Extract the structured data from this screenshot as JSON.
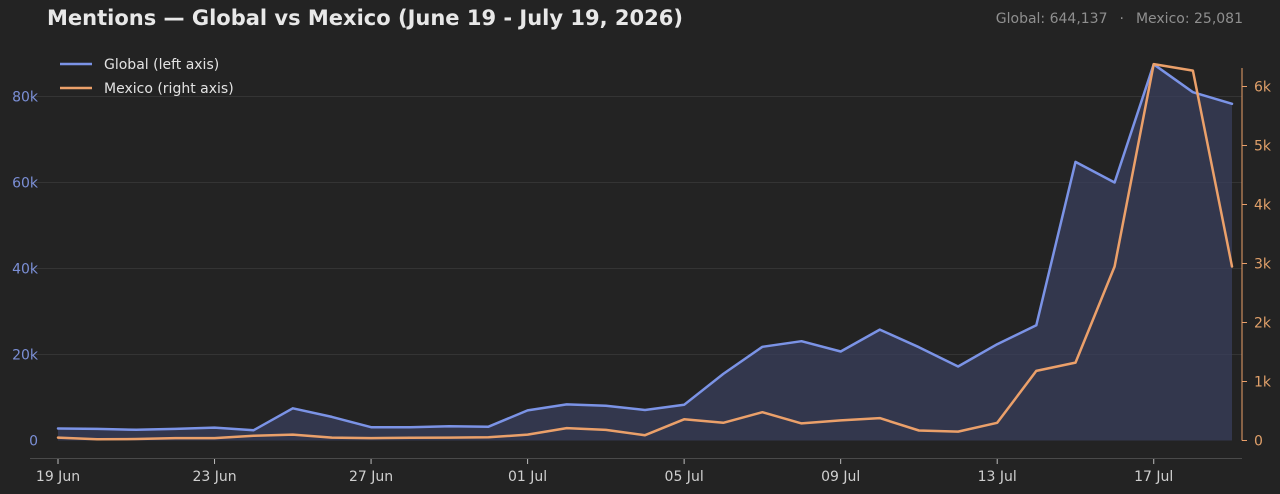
{
  "title": "Mentions — Global vs Mexico (June 19 - July 19, 2026)",
  "totals": {
    "global": "Global: 644,137",
    "separator": "·",
    "mexico": "Mexico: 25,081"
  },
  "colors": {
    "background": "#232323",
    "global": "#7b93e6",
    "mexico": "#eba06a",
    "grid": "#343434",
    "area_fill": "#3a3f5c"
  },
  "chart_data": {
    "type": "line",
    "x_axis": {
      "range": [
        "2026-06-19",
        "2026-07-19"
      ],
      "ticks": [
        "19 Jun",
        "23 Jun",
        "27 Jun",
        "01 Jul",
        "05 Jul",
        "09 Jul",
        "13 Jul",
        "17 Jul"
      ]
    },
    "y_left": {
      "range": [
        0,
        90000
      ],
      "ticks": [
        "0",
        "20k",
        "40k",
        "60k",
        "80k"
      ],
      "tick_values": [
        0,
        20000,
        40000,
        60000,
        80000
      ]
    },
    "y_right": {
      "range": [
        0,
        6500
      ],
      "ticks": [
        "0",
        "1k",
        "2k",
        "3k",
        "4k",
        "5k",
        "6k"
      ],
      "tick_values": [
        0,
        1000,
        2000,
        3000,
        4000,
        5000,
        6000
      ]
    },
    "legend_position": "top-left",
    "grid": true,
    "dates": [
      "2026-06-19",
      "2026-06-20",
      "2026-06-21",
      "2026-06-22",
      "2026-06-23",
      "2026-06-24",
      "2026-06-25",
      "2026-06-26",
      "2026-06-27",
      "2026-06-28",
      "2026-06-29",
      "2026-06-30",
      "2026-07-01",
      "2026-07-02",
      "2026-07-03",
      "2026-07-04",
      "2026-07-05",
      "2026-07-06",
      "2026-07-07",
      "2026-07-08",
      "2026-07-09",
      "2026-07-10",
      "2026-07-11",
      "2026-07-12",
      "2026-07-13",
      "2026-07-14",
      "2026-07-15",
      "2026-07-16",
      "2026-07-17",
      "2026-07-18",
      "2026-07-19"
    ],
    "series": [
      {
        "name": "Global (left axis)",
        "axis": "left",
        "filled": true,
        "values": [
          2800,
          2700,
          2500,
          2700,
          3000,
          2400,
          7500,
          5500,
          3100,
          3100,
          3300,
          3200,
          7000,
          8400,
          8100,
          7100,
          8300,
          15500,
          21800,
          23100,
          20700,
          25800,
          21700,
          17200,
          22400,
          26800,
          64800,
          60000,
          87500,
          81000,
          78300
        ]
      },
      {
        "name": "Mexico (right axis)",
        "axis": "right",
        "filled": false,
        "values": [
          50,
          20,
          25,
          40,
          40,
          80,
          100,
          50,
          40,
          45,
          50,
          55,
          100,
          210,
          180,
          90,
          360,
          300,
          480,
          290,
          340,
          380,
          170,
          150,
          300,
          1180,
          1320,
          2950,
          6380,
          6270,
          2950
        ]
      }
    ]
  }
}
